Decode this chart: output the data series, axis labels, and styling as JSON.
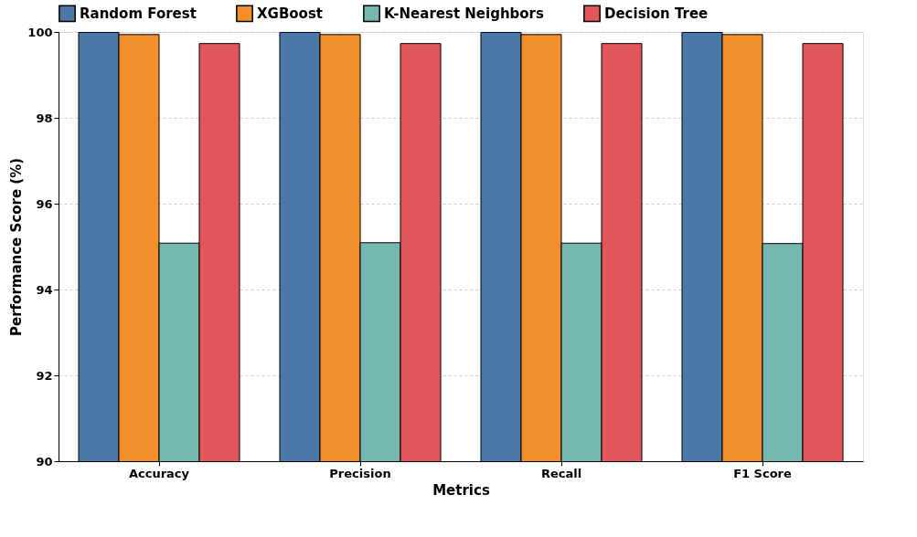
{
  "chart_data": {
    "type": "bar",
    "xlabel": "Metrics",
    "ylabel": "Performance Score (%)",
    "categories": [
      "Accuracy",
      "Precision",
      "Recall",
      "F1 Score"
    ],
    "series": [
      {
        "name": "Random Forest",
        "color": "#4c78a8",
        "values": [
          99.99,
          99.99,
          99.99,
          99.99
        ]
      },
      {
        "name": "XGBoost",
        "color": "#f28e2b",
        "values": [
          99.94,
          99.94,
          99.94,
          99.94
        ]
      },
      {
        "name": "K-Nearest Neighbors",
        "color": "#76b7b2",
        "values": [
          95.08,
          95.09,
          95.08,
          95.07
        ]
      },
      {
        "name": "Decision Tree",
        "color": "#e15759",
        "values": [
          99.73,
          99.73,
          99.73,
          99.73
        ]
      }
    ],
    "ylim": [
      90,
      100
    ],
    "yticks": [
      90,
      92,
      94,
      96,
      98,
      100
    ],
    "grid": "y",
    "legend": "top"
  }
}
